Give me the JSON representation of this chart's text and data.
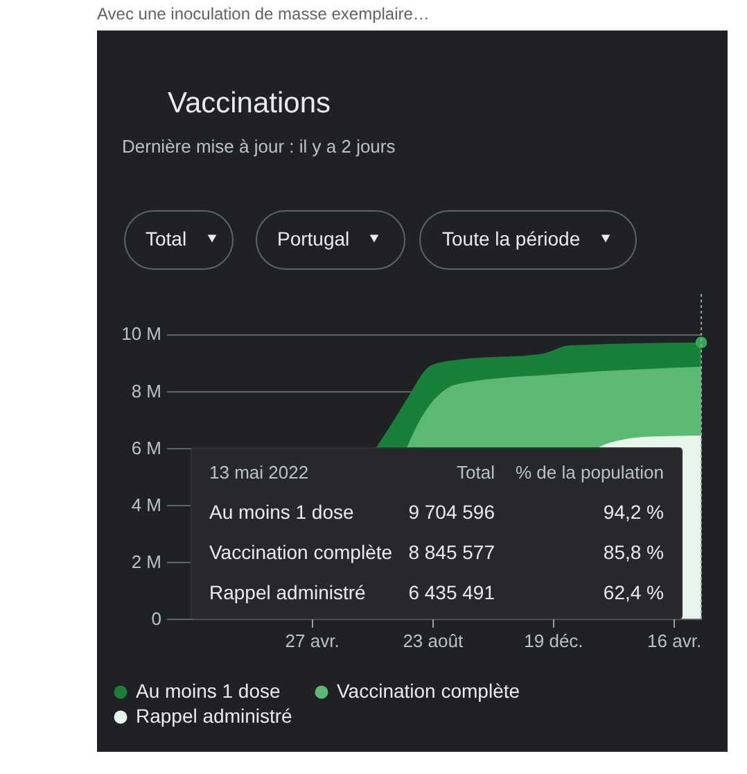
{
  "chart_data": {
    "type": "area",
    "title": "Vaccinations",
    "subtitle": "Dernière mise à jour : il y a 2 jours",
    "annotations": [
      "Avec une inoculation de masse exemplaire…",
      "Total",
      "Portugal",
      "Toute la période",
      "13 mai 2022",
      "Total",
      "% de la population",
      "Au moins 1 dose",
      "9 704 596",
      "94,2 %",
      "Vaccination complète",
      "8 845 577",
      "85,8 %",
      "Rappel administré",
      "6 435 491",
      "62,4 %"
    ],
    "series": [
      {
        "name": "Au moins 1 dose",
        "color": "#188038",
        "x": [
          "2021-06-29",
          "2021-07-17",
          "2021-07-29",
          "2021-08-22",
          "2021-09-18",
          "2021-12-08",
          "2022-01-04",
          "2022-05-13"
        ],
        "values": [
          6.0,
          7.0,
          7.7,
          8.9,
          9.1,
          9.3,
          9.6,
          9.7
        ]
      },
      {
        "name": "Vaccination complète",
        "color": "#5bb974",
        "x": [
          "2021-07-29",
          "2021-08-13",
          "2021-09-03",
          "2021-09-18",
          "2021-12-28",
          "2022-05-13"
        ],
        "values": [
          6.0,
          7.1,
          8.0,
          8.25,
          8.6,
          8.85
        ]
      },
      {
        "name": "Rappel administré",
        "color": "#e6f4ea",
        "x": [
          "2022-02-01",
          "2022-02-10",
          "2022-03-26",
          "2022-05-13"
        ],
        "values": [
          6.0,
          6.15,
          6.4,
          6.43
        ]
      },
      {
        "type": "scatter",
        "color": "#34a853",
        "x": [
          "2022-05-13"
        ],
        "values": [
          9.7
        ]
      }
    ],
    "xlim": [
      "2020-12-06",
      "2022-05-13"
    ],
    "xticks": [
      {
        "value": "2021-04-27",
        "label": "27 avr."
      },
      {
        "value": "2021-08-23",
        "label": "23 août"
      },
      {
        "value": "2021-12-19",
        "label": "19 déc."
      },
      {
        "value": "2022-04-16",
        "label": "16 avr."
      }
    ],
    "ylim": [
      0,
      11.4
    ],
    "yticks": [
      {
        "value": 0,
        "label": "0"
      },
      {
        "value": 2,
        "label": "2 M"
      },
      {
        "value": 4,
        "label": "4 M"
      },
      {
        "value": 6,
        "label": "6 M"
      },
      {
        "value": 8,
        "label": "8 M"
      },
      {
        "value": 10,
        "label": "10 M"
      }
    ],
    "ref_lines": [
      {
        "axis": "x",
        "value": "2022-05-13",
        "color": "#9aa0a6",
        "line_style": "dotted"
      }
    ],
    "grid": "y",
    "legend": "bottom"
  }
}
